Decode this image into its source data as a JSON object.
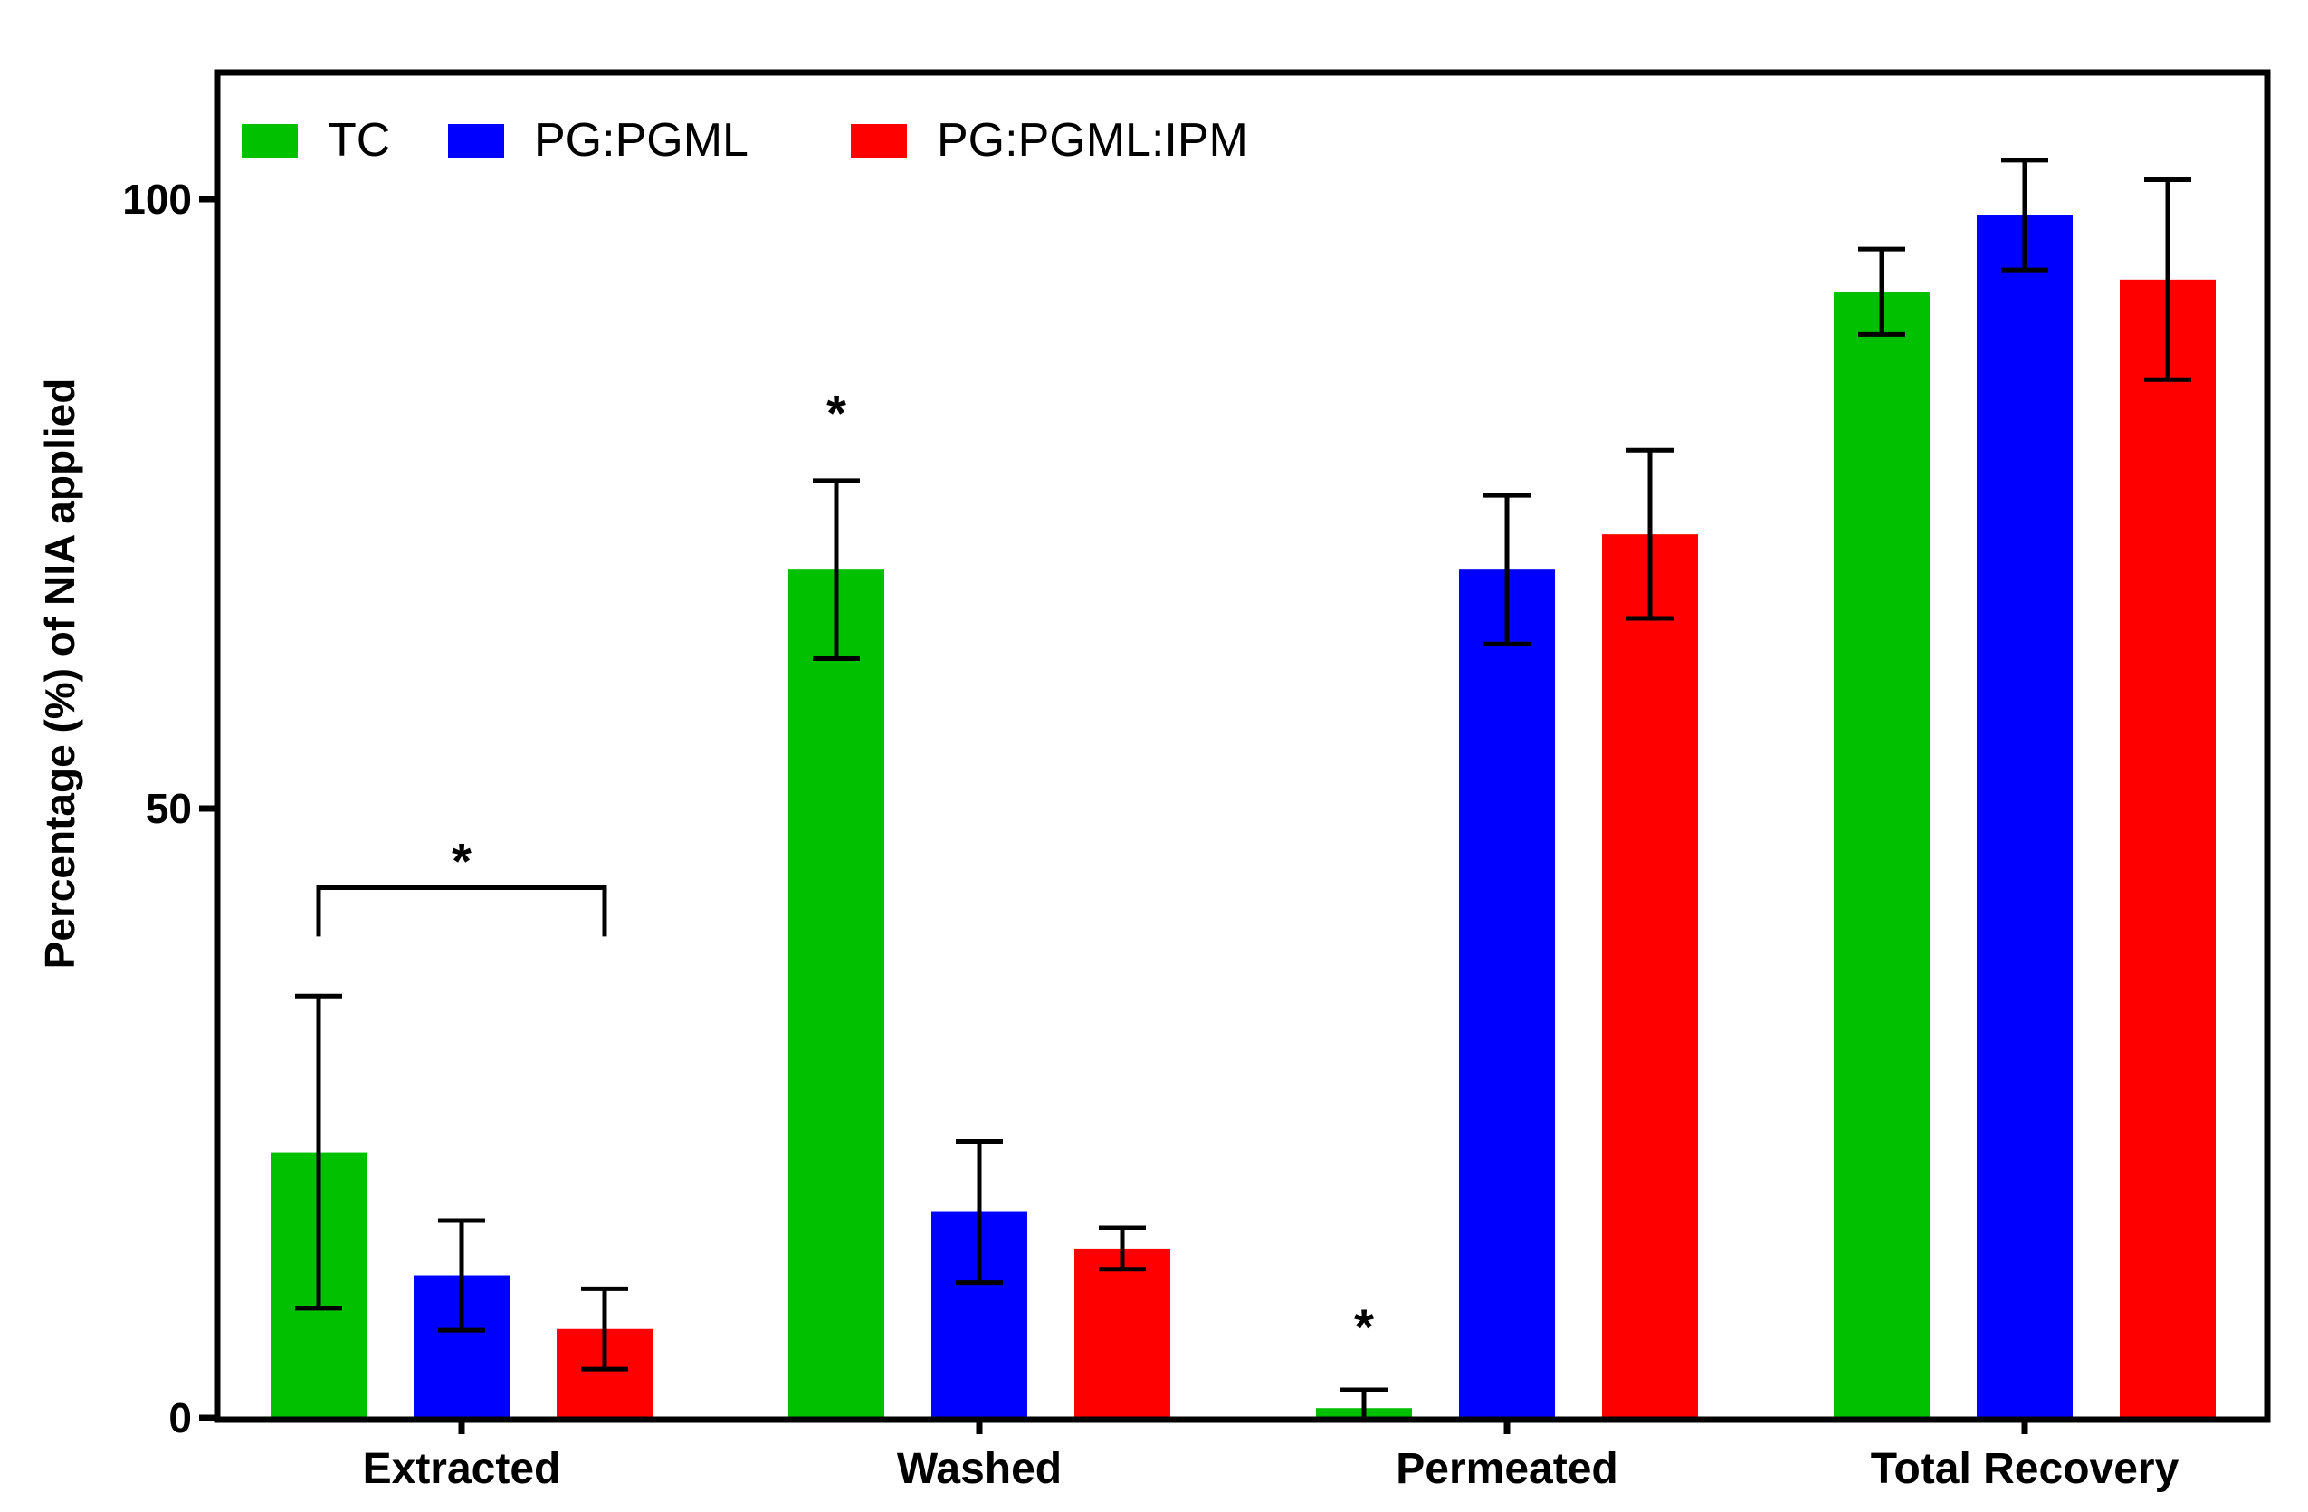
{
  "chart_data": {
    "type": "bar",
    "title": "",
    "xlabel": "",
    "ylabel": "Percentage (%) of NIA applied",
    "ylim": [
      0,
      112
    ],
    "yticks": [
      0,
      50,
      100
    ],
    "ytick_labels": [
      "0",
      "50",
      "100"
    ],
    "grid": false,
    "legend_position": "top-left",
    "categories": [
      "Extracted",
      "Washed",
      "Permeated",
      "Total Recovery"
    ],
    "series": [
      {
        "name": "TC",
        "color": "#00c000",
        "values": [
          21.8,
          69.6,
          0.8,
          92.4
        ],
        "errors": [
          12.8,
          7.3,
          1.5,
          3.5
        ]
      },
      {
        "name": "PG:PGML",
        "color": "#0000ff",
        "values": [
          11.7,
          16.9,
          69.6,
          98.7
        ],
        "errors": [
          4.5,
          5.8,
          6.1,
          4.5
        ]
      },
      {
        "name": "PG:PGML:IPM",
        "color": "#ff0000",
        "values": [
          7.3,
          13.9,
          72.5,
          93.4
        ],
        "errors": [
          3.3,
          1.7,
          6.9,
          8.2
        ]
      }
    ],
    "annotations": [
      {
        "text": "*",
        "type": "bracket",
        "category": "Extracted",
        "from_series": "TC",
        "to_series": "PG:PGML:IPM",
        "y": 43.5,
        "drop_to": 39.5
      },
      {
        "text": "*",
        "type": "marker",
        "category": "Washed",
        "series": "TC",
        "y": 82.5
      },
      {
        "text": "*",
        "type": "marker",
        "category": "Permeated",
        "series": "TC",
        "y": 7.5
      }
    ]
  }
}
